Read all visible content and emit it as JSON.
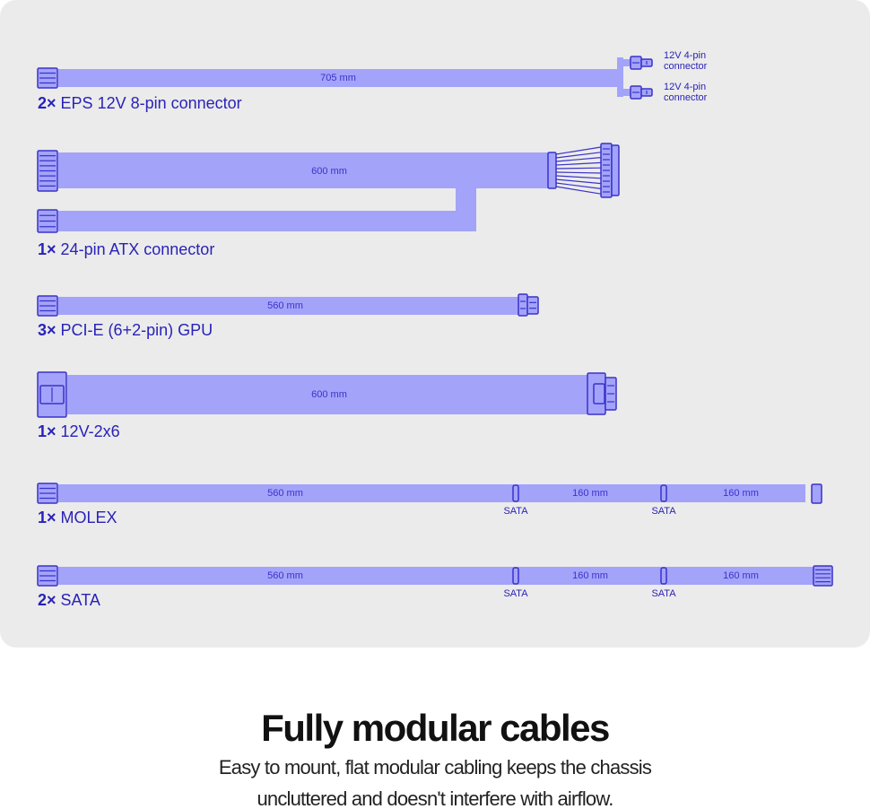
{
  "cables": [
    {
      "count": "2×",
      "label": "EPS 12V 8-pin connector",
      "lengths": [
        "705 mm"
      ],
      "ends": [
        [
          "12V 4-pin",
          "connector"
        ],
        [
          "12V 4-pin",
          "connector"
        ]
      ]
    },
    {
      "count": "1×",
      "label": "24-pin ATX connector",
      "lengths": [
        "600 mm"
      ]
    },
    {
      "count": "3×",
      "label": "PCI-E (6+2-pin) GPU",
      "lengths": [
        "560 mm"
      ]
    },
    {
      "count": "1×",
      "label": "12V-2x6",
      "lengths": [
        "600 mm"
      ]
    },
    {
      "count": "1×",
      "label": "MOLEX",
      "lengths": [
        "560 mm",
        "160 mm",
        "160 mm"
      ],
      "taps": [
        "SATA",
        "SATA"
      ]
    },
    {
      "count": "2×",
      "label": "SATA",
      "lengths": [
        "560 mm",
        "160 mm",
        "160 mm"
      ],
      "taps": [
        "SATA",
        "SATA"
      ]
    }
  ],
  "footer": {
    "title": "Fully modular cables",
    "lines": [
      "Easy to mount, flat modular cabling keeps the chassis",
      "uncluttered and doesn't interfere with airflow."
    ]
  }
}
